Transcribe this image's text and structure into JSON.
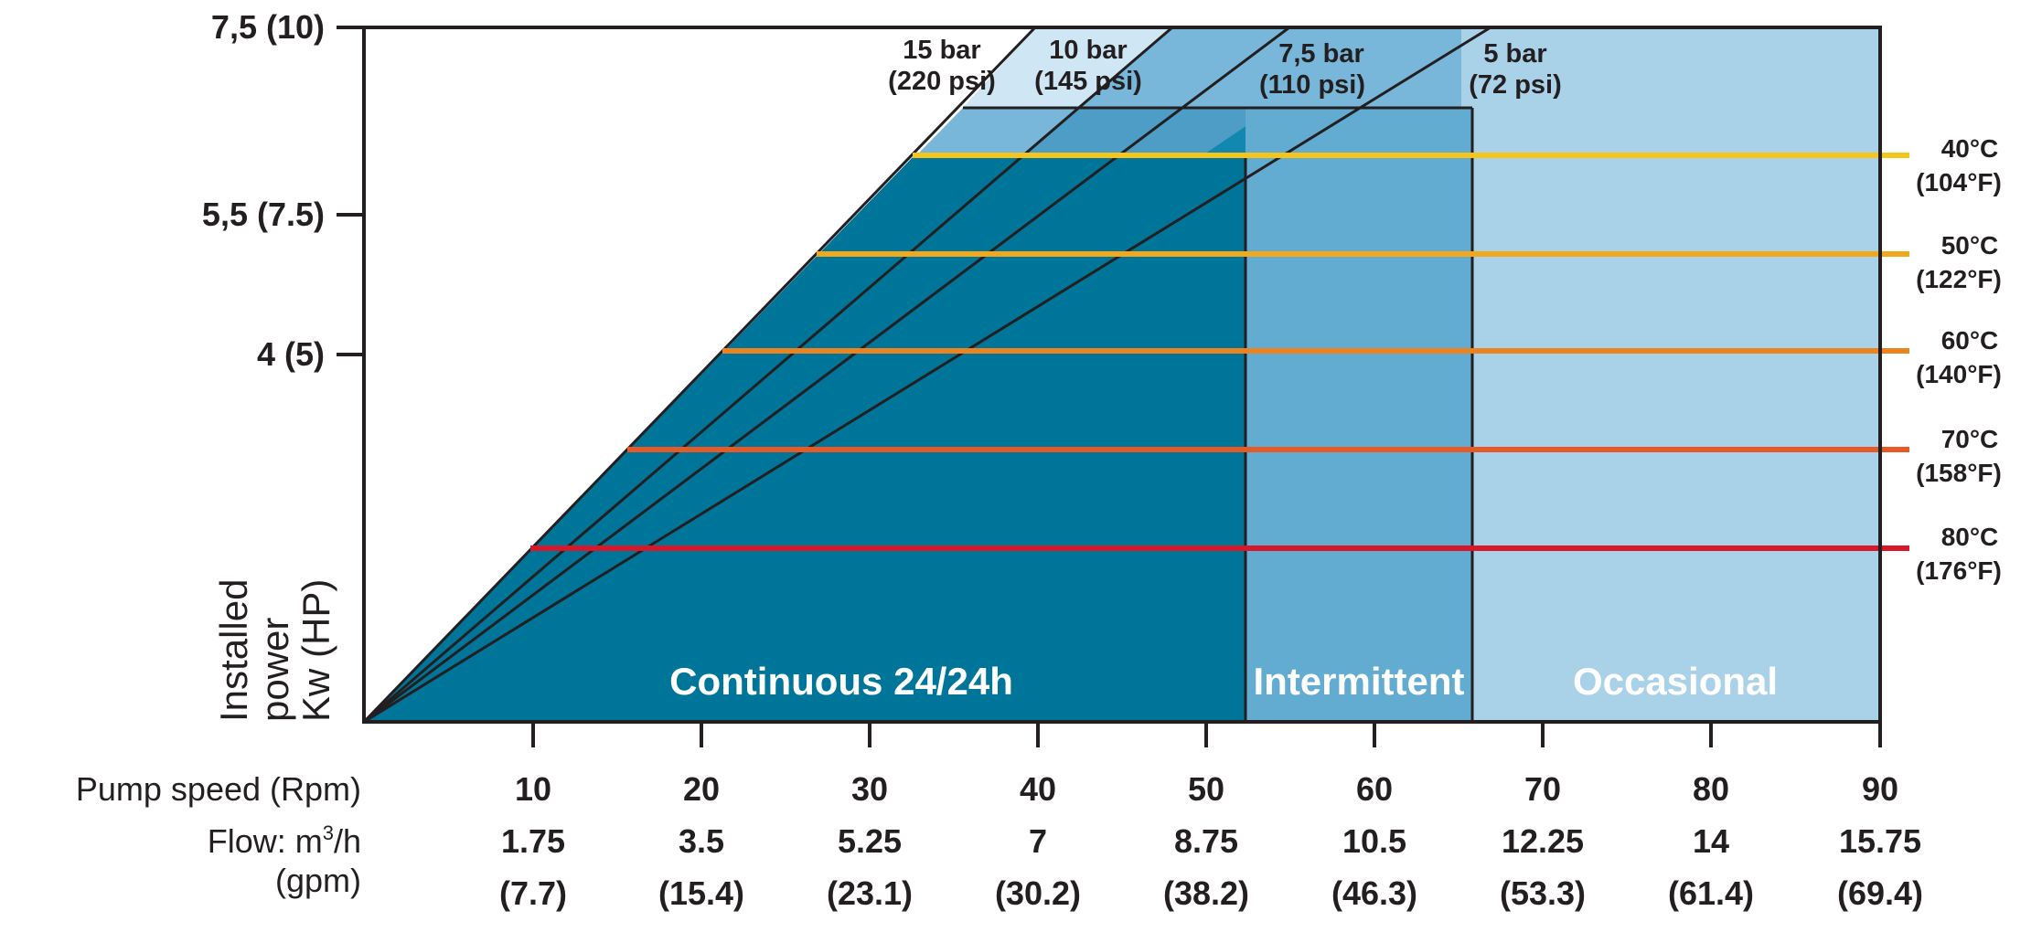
{
  "chart_data": {
    "type": "area",
    "y_ticks": [
      "7,5 (10)",
      "5,5 (7.5)",
      "4 (5)"
    ],
    "y_axis_label": [
      "Installed",
      "power",
      "Kw (HP)"
    ],
    "x_row_labels": {
      "speed": "Pump speed (Rpm)",
      "flow_prefix": "Flow: m",
      "flow_sup": "3",
      "flow_suffix": "/h",
      "gpm": "(gpm)"
    },
    "x_ticks": [
      {
        "speed": "10",
        "flow": "1.75",
        "gpm": "(7.7)"
      },
      {
        "speed": "20",
        "flow": "3.5",
        "gpm": "(15.4)"
      },
      {
        "speed": "30",
        "flow": "5.25",
        "gpm": "(23.1)"
      },
      {
        "speed": "40",
        "flow": "7",
        "gpm": "(30.2)"
      },
      {
        "speed": "50",
        "flow": "8.75",
        "gpm": "(38.2)"
      },
      {
        "speed": "60",
        "flow": "10.5",
        "gpm": "(46.3)"
      },
      {
        "speed": "70",
        "flow": "12.25",
        "gpm": "(53.3)"
      },
      {
        "speed": "80",
        "flow": "14",
        "gpm": "(61.4)"
      },
      {
        "speed": "90",
        "flow": "15.75",
        "gpm": "(69.4)"
      }
    ],
    "pressure_curves": [
      {
        "bar": "15 bar",
        "psi": "(220 psi)"
      },
      {
        "bar": "10 bar",
        "psi": "(145 psi)"
      },
      {
        "bar": "7,5 bar",
        "psi": "(110 psi)"
      },
      {
        "bar": "5 bar",
        "psi": "(72 psi)"
      }
    ],
    "temperature_limits": [
      {
        "c": "40°C",
        "f": "(104°F)",
        "color": "#f6c51b"
      },
      {
        "c": "50°C",
        "f": "(122°F)",
        "color": "#f2a81d"
      },
      {
        "c": "60°C",
        "f": "(140°F)",
        "color": "#ec8321"
      },
      {
        "c": "70°C",
        "f": "(158°F)",
        "color": "#e55a26"
      },
      {
        "c": "80°C",
        "f": "(176°F)",
        "color": "#d7182a"
      }
    ],
    "zones": [
      {
        "label": "Continuous 24/24h",
        "color": "#00759a"
      },
      {
        "label": "Intermittent",
        "color": "#62abd1"
      },
      {
        "label": "Occasional",
        "color": "#a9d2e8"
      }
    ],
    "colors": {
      "axis": "#231f20",
      "band_15": "#78b7d9",
      "band_10": "#4d9dc6",
      "band_7_5": "#1287af",
      "band_5": "#00759a",
      "top_light": "#cfe6f4"
    }
  }
}
